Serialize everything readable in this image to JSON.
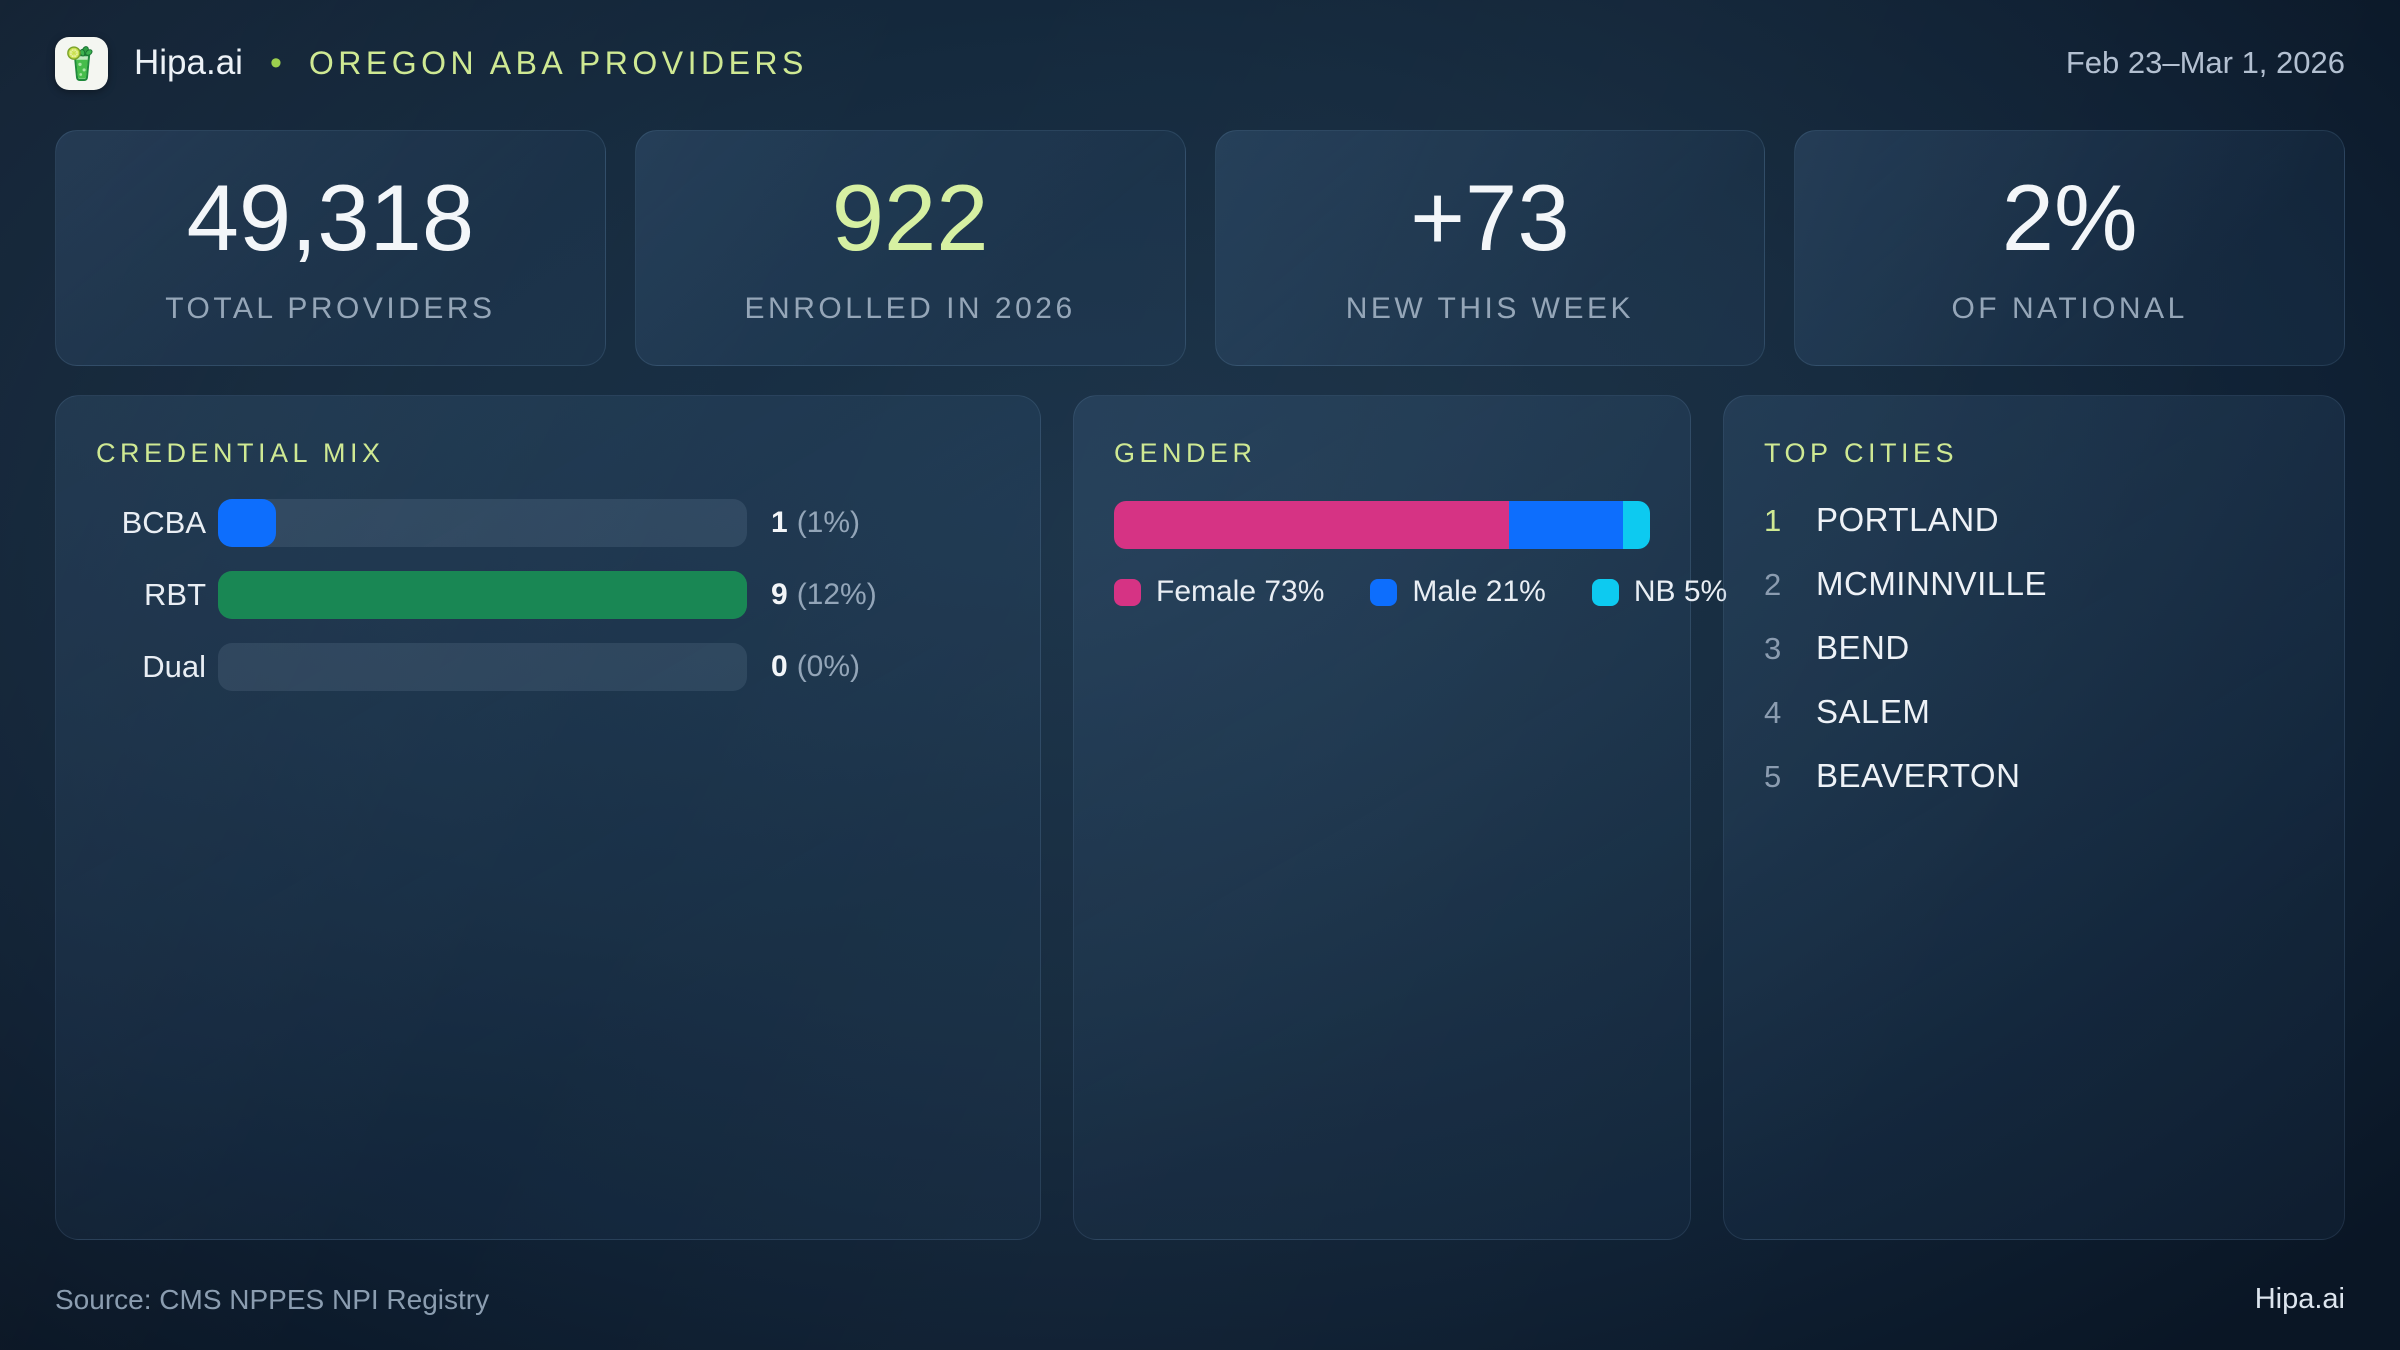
{
  "header": {
    "brand": "Hipa.ai",
    "separator": "•",
    "title": "OREGON ABA PROVIDERS",
    "date_range": "Feb 23–Mar 1, 2026",
    "logo_icon": "mojito-glass-icon"
  },
  "stats": [
    {
      "value": "49,318",
      "label": "TOTAL PROVIDERS"
    },
    {
      "value": "922",
      "label": "ENROLLED IN 2026"
    },
    {
      "value": "+73",
      "label": "NEW THIS WEEK"
    },
    {
      "value": "2%",
      "label": "OF NATIONAL"
    }
  ],
  "chart_data": [
    {
      "type": "bar",
      "orientation": "horizontal",
      "title": "CREDENTIAL MIX",
      "categories": [
        "BCBA",
        "RBT",
        "Dual"
      ],
      "values": [
        1,
        9,
        0
      ],
      "pct_of_total": [
        1,
        12,
        0
      ],
      "bar_scale": "bars scaled to max value 9",
      "rows": [
        {
          "label": "BCBA",
          "value": "1",
          "pct": "(1%)",
          "fill_pct": 11,
          "color": "#0d6efd"
        },
        {
          "label": "RBT",
          "value": "9",
          "pct": "(12%)",
          "fill_pct": 100,
          "color": "#198754"
        },
        {
          "label": "Dual",
          "value": "0",
          "pct": "(0%)",
          "fill_pct": 0,
          "color": "#0d6efd"
        }
      ]
    },
    {
      "type": "bar",
      "subtype": "stacked-percent",
      "title": "GENDER",
      "legend_position": "bottom",
      "segments": [
        {
          "name": "Female",
          "pct": 73,
          "color": "#d63384",
          "legend": "Female 73%"
        },
        {
          "name": "Male",
          "pct": 21,
          "color": "#0d6efd",
          "legend": "Male 21%"
        },
        {
          "name": "NB",
          "pct": 5,
          "color": "#0dcaf0",
          "legend": "NB 5%"
        }
      ]
    },
    {
      "type": "table",
      "title": "TOP CITIES",
      "rows": [
        {
          "rank": "1",
          "city": "PORTLAND"
        },
        {
          "rank": "2",
          "city": "MCMINNVILLE"
        },
        {
          "rank": "3",
          "city": "BEND"
        },
        {
          "rank": "4",
          "city": "SALEM"
        },
        {
          "rank": "5",
          "city": "BEAVERTON"
        }
      ]
    }
  ],
  "footer": {
    "source": "Source: CMS NPPES NPI Registry",
    "brand": "Hipa.ai"
  },
  "colors": {
    "accent_number_green": "#d6f0a2",
    "section_title_green": "#cfe993",
    "bcba_blue": "#0d6efd",
    "rbt_green": "#198754",
    "female_pink": "#d63384",
    "male_blue": "#0d6efd",
    "nb_cyan": "#0dcaf0",
    "background_navy": "#102135"
  }
}
